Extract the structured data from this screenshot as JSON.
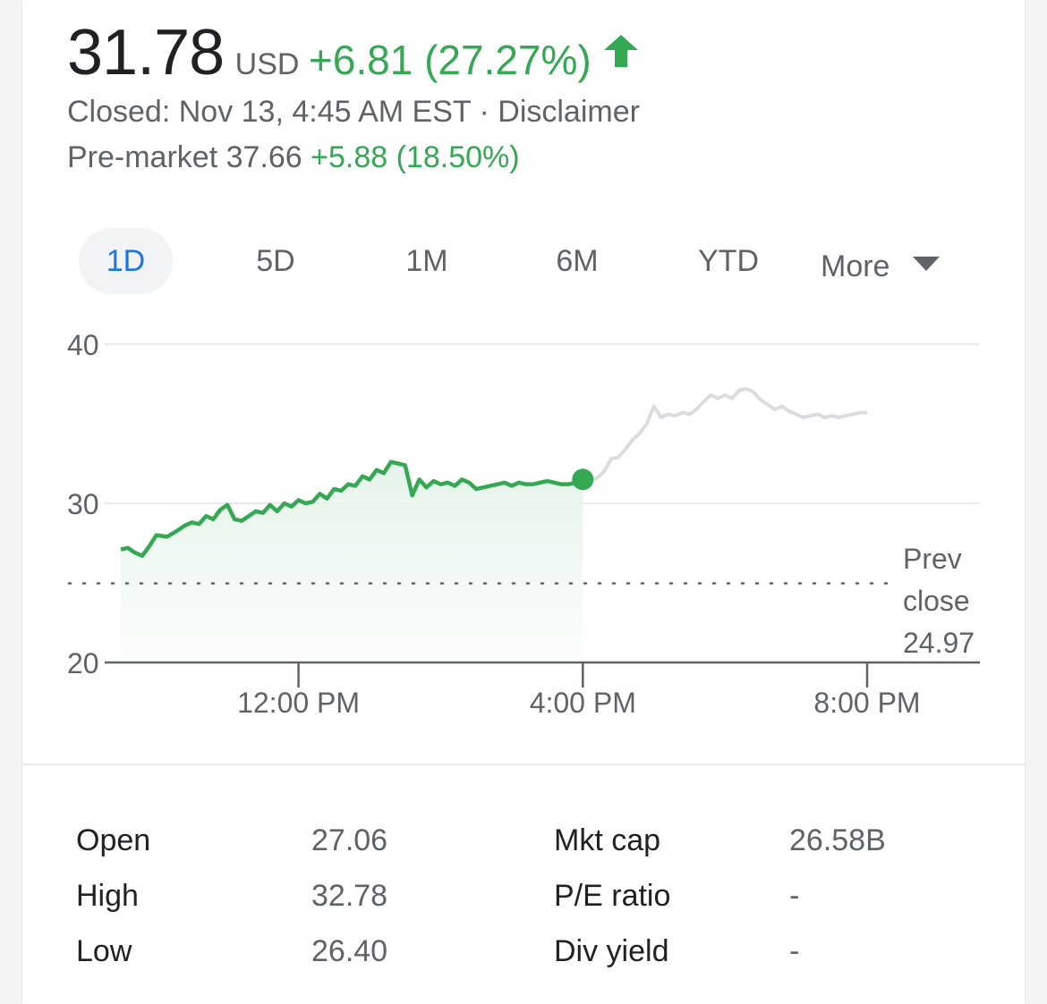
{
  "quote": {
    "price": "31.78",
    "currency": "USD",
    "change": "+6.81 (27.27%)",
    "closed_text": "Closed: Nov 13, 4:45 AM EST · ",
    "disclaimer": "Disclaimer",
    "premarket_label": "Pre-market 37.66 ",
    "premarket_change": "+5.88 (18.50%)"
  },
  "tabs": [
    {
      "label": "1D",
      "active": true
    },
    {
      "label": "5D",
      "active": false
    },
    {
      "label": "1M",
      "active": false
    },
    {
      "label": "6M",
      "active": false
    },
    {
      "label": "YTD",
      "active": false
    },
    {
      "label": "More",
      "active": false
    }
  ],
  "colors": {
    "positive": "#34a853",
    "active_tab": "#1a73e8",
    "afterhours_line": "#dadce0",
    "fill_top": "#e6f4ea"
  },
  "icons": {
    "change": "up-arrow-icon",
    "more": "caret-down-icon",
    "current_point": "current-price-marker"
  },
  "chart_data": {
    "type": "line",
    "ylim": [
      20,
      40
    ],
    "y_ticks": [
      "40",
      "30",
      "20"
    ],
    "x_ticks": [
      {
        "label": "12:00 PM",
        "hour": 12
      },
      {
        "label": "4:00 PM",
        "hour": 16
      },
      {
        "label": "8:00 PM",
        "hour": 20
      }
    ],
    "x_range_hours": [
      9.5,
      20
    ],
    "reference": {
      "label_lines": [
        "Prev",
        "close",
        "24.97"
      ],
      "value": 24.97
    },
    "series": [
      {
        "session": "regular",
        "color": "#34a853",
        "x": [
          9.5,
          9.6,
          9.7,
          9.8,
          9.9,
          10.0,
          10.15,
          10.3,
          10.4,
          10.5,
          10.6,
          10.7,
          10.8,
          10.9,
          11.0,
          11.1,
          11.2,
          11.3,
          11.4,
          11.5,
          11.6,
          11.7,
          11.8,
          11.9,
          12.0,
          12.1,
          12.2,
          12.3,
          12.4,
          12.5,
          12.6,
          12.7,
          12.8,
          12.9,
          13.0,
          13.1,
          13.2,
          13.3,
          13.4,
          13.5,
          13.6,
          13.7,
          13.8,
          13.9,
          14.0,
          14.1,
          14.2,
          14.3,
          14.4,
          14.5,
          14.6,
          14.7,
          14.8,
          14.9,
          15.0,
          15.1,
          15.2,
          15.3,
          15.4,
          15.5,
          15.6,
          15.7,
          15.8,
          15.9,
          16.0
        ],
        "y": [
          27.1,
          27.2,
          26.9,
          26.7,
          27.3,
          28.0,
          27.9,
          28.3,
          28.6,
          28.8,
          28.7,
          29.2,
          29.0,
          29.6,
          29.9,
          29.0,
          28.9,
          29.2,
          29.5,
          29.4,
          29.9,
          29.5,
          30.0,
          29.8,
          30.2,
          30.0,
          30.1,
          30.6,
          30.3,
          30.9,
          30.8,
          31.2,
          31.1,
          31.7,
          31.5,
          32.1,
          31.9,
          32.6,
          32.5,
          32.4,
          30.5,
          31.5,
          31.0,
          31.4,
          31.2,
          31.3,
          31.1,
          31.5,
          31.3,
          30.9,
          31.0,
          31.1,
          31.2,
          31.3,
          31.1,
          31.3,
          31.2,
          31.2,
          31.3,
          31.4,
          31.3,
          31.2,
          31.2,
          31.3,
          31.5
        ]
      },
      {
        "session": "after-hours",
        "color": "#dadce0",
        "x": [
          16.0,
          16.1,
          16.2,
          16.3,
          16.4,
          16.5,
          16.6,
          16.7,
          16.8,
          16.9,
          17.0,
          17.1,
          17.2,
          17.3,
          17.4,
          17.5,
          17.6,
          17.7,
          17.8,
          17.9,
          18.0,
          18.1,
          18.2,
          18.3,
          18.4,
          18.5,
          18.6,
          18.7,
          18.8,
          18.9,
          19.0,
          19.1,
          19.2,
          19.3,
          19.4,
          19.5,
          19.6,
          19.7,
          19.8,
          19.9,
          20.0
        ],
        "y": [
          31.5,
          31.4,
          31.6,
          32.0,
          32.8,
          32.9,
          33.4,
          34.0,
          34.4,
          35.0,
          36.1,
          35.4,
          35.6,
          35.5,
          35.7,
          35.6,
          35.9,
          36.4,
          36.8,
          36.6,
          36.8,
          36.6,
          37.1,
          37.2,
          37.0,
          36.5,
          36.2,
          35.9,
          36.1,
          35.8,
          35.6,
          35.4,
          35.5,
          35.6,
          35.4,
          35.5,
          35.4,
          35.5,
          35.6,
          35.7,
          35.7
        ]
      }
    ]
  },
  "stats": {
    "left": [
      {
        "label": "Open",
        "value": "27.06"
      },
      {
        "label": "High",
        "value": "32.78"
      },
      {
        "label": "Low",
        "value": "26.40"
      }
    ],
    "right": [
      {
        "label": "Mkt cap",
        "value": "26.58B"
      },
      {
        "label": "P/E ratio",
        "value": "-"
      },
      {
        "label": "Div yield",
        "value": "-"
      }
    ]
  }
}
